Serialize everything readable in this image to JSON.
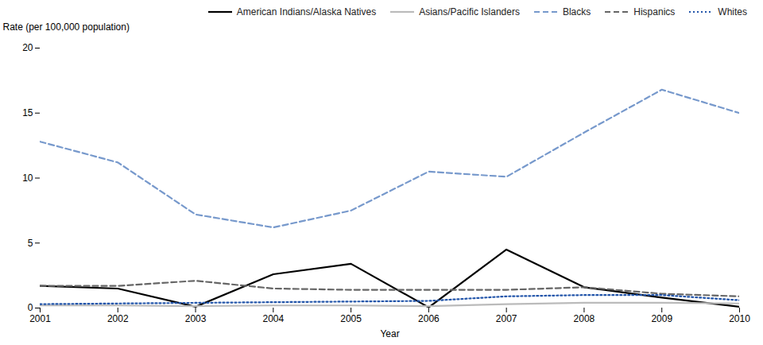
{
  "chart_data": {
    "type": "line",
    "x": [
      2001,
      2002,
      2003,
      2004,
      2005,
      2006,
      2007,
      2008,
      2009,
      2010
    ],
    "xlabel": "Year",
    "ylabel": "Rate (per 100,000 population)",
    "xlim": [
      2001,
      2010
    ],
    "xticks": [
      2001,
      2002,
      2003,
      2004,
      2005,
      2006,
      2007,
      2008,
      2009,
      2010
    ],
    "ylim": [
      0,
      20
    ],
    "yticks": [
      0,
      5,
      10,
      15,
      20
    ],
    "grid": false,
    "legend": "upper right",
    "series": [
      {
        "name": "American Indians/Alaska Natives",
        "color": "#000000",
        "line_style": "solid",
        "values": [
          1.7,
          1.5,
          0.1,
          2.6,
          3.4,
          0.05,
          4.5,
          1.6,
          0.8,
          0.1
        ]
      },
      {
        "name": "Asians/Pacific Islanders",
        "color": "#bbbbbb",
        "line_style": "solid",
        "values": [
          0.2,
          0.2,
          0.15,
          0.2,
          0.2,
          0.15,
          0.3,
          0.4,
          0.4,
          0.35
        ]
      },
      {
        "name": "Blacks",
        "color": "#7799cc",
        "line_style": "dashed",
        "values": [
          12.8,
          11.2,
          7.2,
          6.2,
          7.5,
          10.5,
          10.1,
          13.5,
          16.8,
          15.0
        ]
      },
      {
        "name": "Hispanics",
        "color": "#666666",
        "line_style": "dashed",
        "values": [
          1.7,
          1.7,
          2.1,
          1.5,
          1.4,
          1.4,
          1.4,
          1.6,
          1.1,
          0.9
        ]
      },
      {
        "name": "Whites",
        "color": "#2255aa",
        "line_style": "dotted",
        "values": [
          0.3,
          0.35,
          0.4,
          0.45,
          0.5,
          0.55,
          0.9,
          1.0,
          1.0,
          0.6
        ]
      }
    ]
  }
}
